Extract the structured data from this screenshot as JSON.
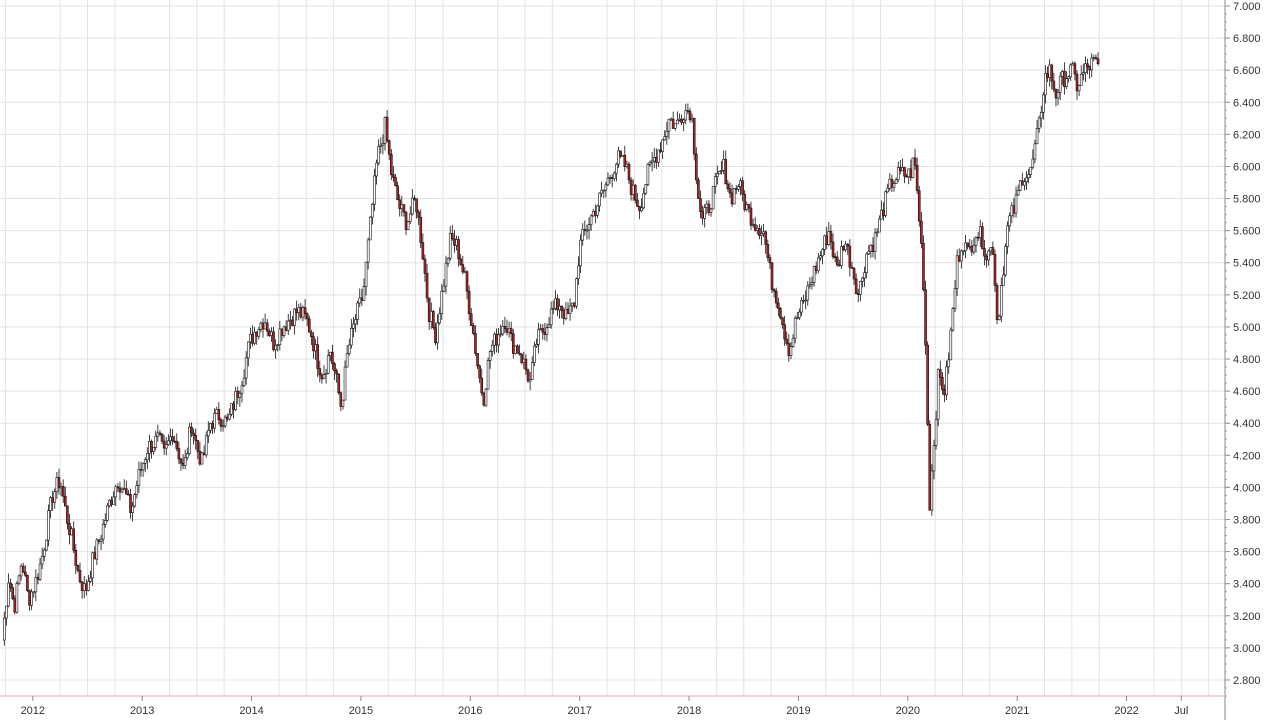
{
  "chart_data": {
    "type": "candlestick",
    "title": "",
    "xlabel": "",
    "ylabel": "",
    "ylim": [
      2.7,
      7.0
    ],
    "y_ticks": [
      2.8,
      3.0,
      3.2,
      3.4,
      3.6,
      3.8,
      4.0,
      4.2,
      4.4,
      4.6,
      4.8,
      5.0,
      5.2,
      5.4,
      5.6,
      5.8,
      6.0,
      6.2,
      6.4,
      6.6,
      6.8,
      7.0
    ],
    "y_tick_labels": [
      "2.800",
      "3.000",
      "3.200",
      "3.400",
      "3.600",
      "3.800",
      "4.000",
      "4.200",
      "4.400",
      "4.600",
      "4.800",
      "5.000",
      "5.200",
      "5.400",
      "5.600",
      "5.800",
      "6.000",
      "6.200",
      "6.400",
      "6.600",
      "6.800",
      "7.000"
    ],
    "xlim": [
      2011.7,
      2022.9
    ],
    "x_ticks": [
      2012,
      2013,
      2014,
      2015,
      2016,
      2017,
      2018,
      2019,
      2020,
      2021,
      2022,
      2022.5
    ],
    "x_tick_labels": [
      "2012",
      "2013",
      "2014",
      "2015",
      "2016",
      "2017",
      "2018",
      "2019",
      "2020",
      "2021",
      "2022",
      "Jul"
    ],
    "x_minor_gridlines": [
      2011.75,
      2012.25,
      2012.5,
      2012.75,
      2013.25,
      2013.5,
      2013.75,
      2014.25,
      2014.5,
      2014.75,
      2015.25,
      2015.5,
      2015.75,
      2016.25,
      2016.5,
      2016.75,
      2017.25,
      2017.5,
      2017.75,
      2018.25,
      2018.5,
      2018.75,
      2019.25,
      2019.5,
      2019.75,
      2020.25,
      2020.5,
      2020.75,
      2021.25,
      2021.5,
      2021.75,
      2022.25,
      2022.5,
      2022.75
    ],
    "grid": true,
    "colors": {
      "up": "#ffffff",
      "down": "#b22222",
      "outline": "#111111",
      "grid": "#e3e3e3",
      "axis": "#e8c8c8"
    },
    "series": [
      {
        "points": [
          [
            2011.72,
            3.05
          ],
          [
            2011.78,
            3.45
          ],
          [
            2011.83,
            3.25
          ],
          [
            2011.9,
            3.55
          ],
          [
            2011.96,
            3.3
          ],
          [
            2012.02,
            3.4
          ],
          [
            2012.08,
            3.55
          ],
          [
            2012.13,
            3.75
          ],
          [
            2012.18,
            3.95
          ],
          [
            2012.25,
            4.05
          ],
          [
            2012.3,
            3.85
          ],
          [
            2012.35,
            3.7
          ],
          [
            2012.42,
            3.45
          ],
          [
            2012.48,
            3.35
          ],
          [
            2012.55,
            3.55
          ],
          [
            2012.62,
            3.7
          ],
          [
            2012.7,
            3.9
          ],
          [
            2012.78,
            4.05
          ],
          [
            2012.85,
            3.95
          ],
          [
            2012.9,
            3.85
          ],
          [
            2012.96,
            4.05
          ],
          [
            2013.05,
            4.25
          ],
          [
            2013.15,
            4.3
          ],
          [
            2013.2,
            4.2
          ],
          [
            2013.28,
            4.35
          ],
          [
            2013.38,
            4.1
          ],
          [
            2013.45,
            4.4
          ],
          [
            2013.5,
            4.25
          ],
          [
            2013.55,
            4.15
          ],
          [
            2013.62,
            4.4
          ],
          [
            2013.7,
            4.45
          ],
          [
            2013.78,
            4.4
          ],
          [
            2013.85,
            4.55
          ],
          [
            2013.92,
            4.7
          ],
          [
            2013.98,
            4.9
          ],
          [
            2014.05,
            5.0
          ],
          [
            2014.12,
            5.05
          ],
          [
            2014.2,
            4.9
          ],
          [
            2014.28,
            5.0
          ],
          [
            2014.35,
            5.05
          ],
          [
            2014.42,
            5.1
          ],
          [
            2014.5,
            5.05
          ],
          [
            2014.55,
            4.95
          ],
          [
            2014.6,
            4.8
          ],
          [
            2014.65,
            4.7
          ],
          [
            2014.72,
            4.85
          ],
          [
            2014.78,
            4.65
          ],
          [
            2014.82,
            4.5
          ],
          [
            2014.88,
            4.85
          ],
          [
            2014.95,
            5.05
          ],
          [
            2015.02,
            5.2
          ],
          [
            2015.08,
            5.6
          ],
          [
            2015.15,
            6.05
          ],
          [
            2015.22,
            6.25
          ],
          [
            2015.28,
            5.95
          ],
          [
            2015.35,
            5.75
          ],
          [
            2015.42,
            5.65
          ],
          [
            2015.5,
            5.8
          ],
          [
            2015.56,
            5.5
          ],
          [
            2015.62,
            5.1
          ],
          [
            2015.68,
            4.95
          ],
          [
            2015.75,
            5.25
          ],
          [
            2015.82,
            5.55
          ],
          [
            2015.88,
            5.5
          ],
          [
            2015.95,
            5.3
          ],
          [
            2016.02,
            5.0
          ],
          [
            2016.08,
            4.7
          ],
          [
            2016.12,
            4.55
          ],
          [
            2016.18,
            4.85
          ],
          [
            2016.25,
            4.95
          ],
          [
            2016.32,
            5.05
          ],
          [
            2016.38,
            4.9
          ],
          [
            2016.45,
            4.85
          ],
          [
            2016.5,
            4.75
          ],
          [
            2016.55,
            4.65
          ],
          [
            2016.6,
            4.9
          ],
          [
            2016.68,
            5.0
          ],
          [
            2016.75,
            5.1
          ],
          [
            2016.82,
            5.15
          ],
          [
            2016.88,
            5.05
          ],
          [
            2016.95,
            5.15
          ],
          [
            2017.0,
            5.5
          ],
          [
            2017.08,
            5.65
          ],
          [
            2017.15,
            5.75
          ],
          [
            2017.22,
            5.85
          ],
          [
            2017.28,
            5.95
          ],
          [
            2017.35,
            6.05
          ],
          [
            2017.42,
            6.0
          ],
          [
            2017.48,
            5.85
          ],
          [
            2017.55,
            5.75
          ],
          [
            2017.62,
            5.95
          ],
          [
            2017.68,
            6.05
          ],
          [
            2017.75,
            6.15
          ],
          [
            2017.82,
            6.3
          ],
          [
            2017.88,
            6.25
          ],
          [
            2017.95,
            6.35
          ],
          [
            2018.02,
            6.35
          ],
          [
            2018.08,
            5.85
          ],
          [
            2018.12,
            5.65
          ],
          [
            2018.18,
            5.75
          ],
          [
            2018.25,
            5.9
          ],
          [
            2018.32,
            6.0
          ],
          [
            2018.38,
            5.8
          ],
          [
            2018.45,
            5.9
          ],
          [
            2018.52,
            5.75
          ],
          [
            2018.6,
            5.65
          ],
          [
            2018.68,
            5.6
          ],
          [
            2018.75,
            5.3
          ],
          [
            2018.82,
            5.15
          ],
          [
            2018.88,
            4.95
          ],
          [
            2018.92,
            4.85
          ],
          [
            2018.98,
            5.05
          ],
          [
            2019.05,
            5.15
          ],
          [
            2019.12,
            5.3
          ],
          [
            2019.2,
            5.45
          ],
          [
            2019.28,
            5.6
          ],
          [
            2019.35,
            5.35
          ],
          [
            2019.42,
            5.55
          ],
          [
            2019.5,
            5.35
          ],
          [
            2019.55,
            5.2
          ],
          [
            2019.62,
            5.45
          ],
          [
            2019.7,
            5.55
          ],
          [
            2019.78,
            5.75
          ],
          [
            2019.85,
            5.9
          ],
          [
            2019.92,
            5.95
          ],
          [
            2019.98,
            5.95
          ],
          [
            2020.02,
            5.95
          ],
          [
            2020.06,
            6.05
          ],
          [
            2020.12,
            5.55
          ],
          [
            2020.15,
            5.2
          ],
          [
            2020.18,
            4.45
          ],
          [
            2020.2,
            3.9
          ],
          [
            2020.24,
            4.3
          ],
          [
            2020.28,
            4.7
          ],
          [
            2020.34,
            4.6
          ],
          [
            2020.4,
            5.0
          ],
          [
            2020.45,
            5.4
          ],
          [
            2020.5,
            5.55
          ],
          [
            2020.55,
            5.45
          ],
          [
            2020.62,
            5.6
          ],
          [
            2020.68,
            5.55
          ],
          [
            2020.72,
            5.45
          ],
          [
            2020.78,
            5.5
          ],
          [
            2020.82,
            5.0
          ],
          [
            2020.86,
            5.3
          ],
          [
            2020.92,
            5.65
          ],
          [
            2020.98,
            5.75
          ],
          [
            2021.05,
            5.95
          ],
          [
            2021.12,
            5.95
          ],
          [
            2021.2,
            6.25
          ],
          [
            2021.25,
            6.55
          ],
          [
            2021.3,
            6.6
          ],
          [
            2021.35,
            6.45
          ],
          [
            2021.42,
            6.55
          ],
          [
            2021.5,
            6.6
          ],
          [
            2021.55,
            6.5
          ],
          [
            2021.62,
            6.6
          ],
          [
            2021.7,
            6.65
          ],
          [
            2021.75,
            6.6
          ]
        ]
      }
    ]
  }
}
